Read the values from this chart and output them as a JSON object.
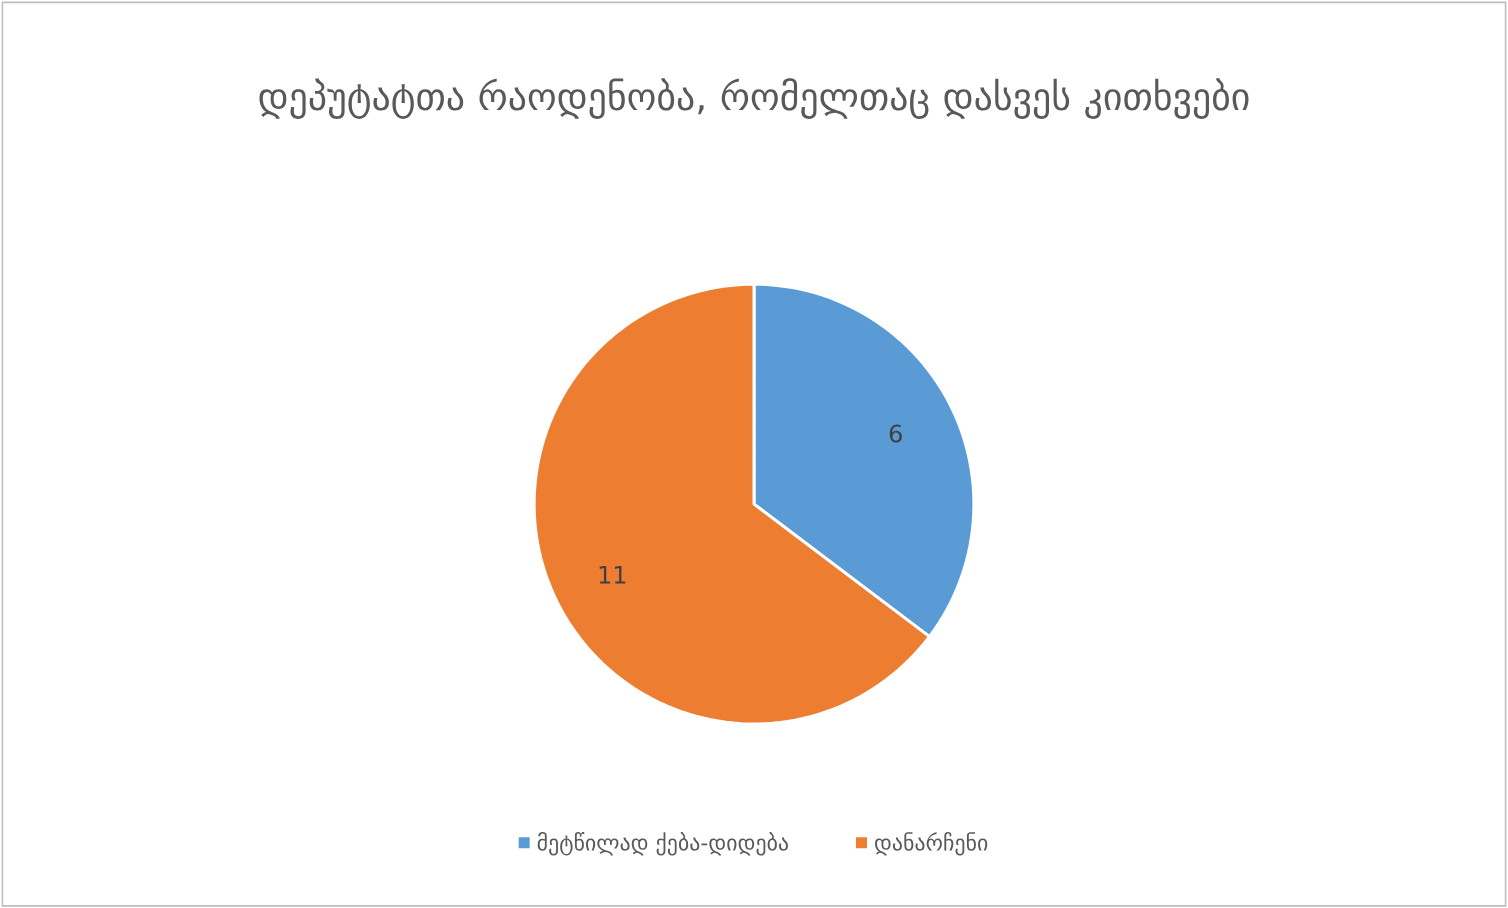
{
  "chart_data": {
    "type": "pie",
    "title": "დეპუტატთა რაოდენობა, რომელთაც დასვეს კითხვები",
    "categories": [
      "მეტწილად ქება-დიდება",
      "დანარჩენი"
    ],
    "values": [
      6,
      11
    ],
    "colors": [
      "#5b9bd5",
      "#ed7d31"
    ],
    "data_labels": true,
    "legend": "bottom"
  }
}
